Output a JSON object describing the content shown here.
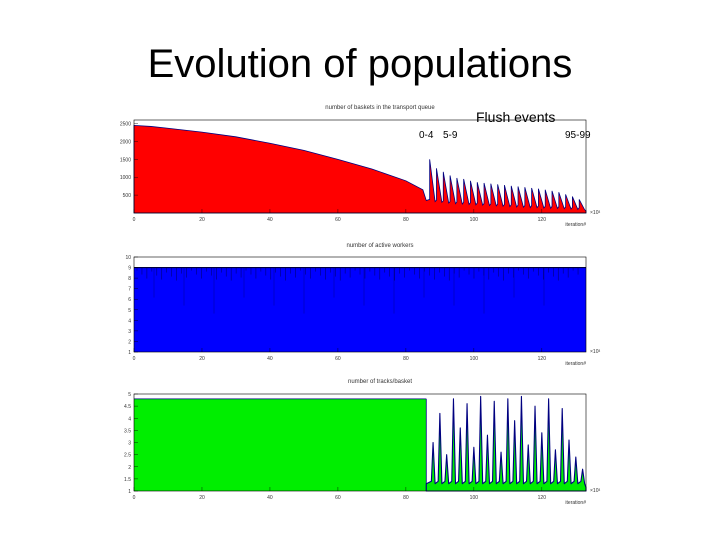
{
  "slide": {
    "title": "Evolution of populations",
    "annotations": {
      "flush_events": "Flush events",
      "group_a": "0-4",
      "group_b": "5-9",
      "group_c": "95-99"
    }
  },
  "colors": {
    "red": "#ff0000",
    "blue": "#0000ff",
    "green": "#00ee00",
    "outline": "#000080"
  },
  "chart_data": [
    {
      "type": "area",
      "title": "number of baskets in the transport queue",
      "xlabel": "iteration#",
      "x_exponent": "×10³",
      "xlim": [
        0,
        133
      ],
      "xticks": [
        "0",
        "20",
        "40",
        "60",
        "80",
        "100",
        "120"
      ],
      "ylim": [
        0,
        2600
      ],
      "yticks": [
        "500",
        "1000",
        "1500",
        "2000",
        "2500"
      ],
      "color": "red",
      "points_before_flush": [
        [
          0,
          2450
        ],
        [
          5,
          2420
        ],
        [
          10,
          2370
        ],
        [
          20,
          2260
        ],
        [
          30,
          2130
        ],
        [
          40,
          1950
        ],
        [
          50,
          1750
        ],
        [
          60,
          1500
        ],
        [
          70,
          1230
        ],
        [
          80,
          900
        ],
        [
          85,
          650
        ],
        [
          86,
          350
        ]
      ],
      "flush_spikes": [
        [
          87,
          1500,
          320
        ],
        [
          89,
          1250,
          300
        ],
        [
          91,
          1150,
          280
        ],
        [
          93,
          1050,
          260
        ],
        [
          95,
          980,
          250
        ],
        [
          97,
          950,
          240
        ],
        [
          99,
          900,
          230
        ],
        [
          101,
          860,
          220
        ],
        [
          103,
          840,
          210
        ],
        [
          105,
          820,
          200
        ],
        [
          107,
          800,
          190
        ],
        [
          109,
          780,
          180
        ],
        [
          111,
          760,
          170
        ],
        [
          113,
          740,
          160
        ],
        [
          115,
          720,
          150
        ],
        [
          117,
          700,
          150
        ],
        [
          119,
          680,
          140
        ],
        [
          121,
          650,
          130
        ],
        [
          123,
          620,
          130
        ],
        [
          125,
          580,
          120
        ],
        [
          127,
          520,
          110
        ],
        [
          129,
          460,
          100
        ],
        [
          131,
          380,
          90
        ]
      ]
    },
    {
      "type": "area",
      "title": "number of active workers",
      "xlabel": "iteration#",
      "x_exponent": "×10³",
      "xlim": [
        0,
        133
      ],
      "xticks": [
        "0",
        "20",
        "40",
        "60",
        "80",
        "100",
        "120"
      ],
      "ylim": [
        1,
        10
      ],
      "yticks": [
        "1",
        "2",
        "3",
        "4",
        "5",
        "6",
        "7",
        "8",
        "9",
        "10"
      ],
      "color": "blue",
      "level": 9
    },
    {
      "type": "area",
      "title": "number of tracks/basket",
      "xlabel": "iteration#",
      "x_exponent": "×10³",
      "xlim": [
        0,
        133
      ],
      "xticks": [
        "0",
        "20",
        "40",
        "60",
        "80",
        "100",
        "120"
      ],
      "ylim": [
        1,
        5
      ],
      "yticks": [
        "1",
        "1.5",
        "2",
        "2.5",
        "3",
        "3.5",
        "4",
        "4.5",
        "5"
      ],
      "color": "green",
      "level_before_flush": 4.8,
      "flush_start": 86,
      "flush_spikes": [
        [
          88,
          3.0
        ],
        [
          90,
          4.2
        ],
        [
          92,
          2.5
        ],
        [
          94,
          4.8
        ],
        [
          96,
          3.6
        ],
        [
          98,
          4.6
        ],
        [
          100,
          2.8
        ],
        [
          102,
          4.9
        ],
        [
          104,
          3.3
        ],
        [
          106,
          4.7
        ],
        [
          108,
          2.6
        ],
        [
          110,
          4.8
        ],
        [
          112,
          3.9
        ],
        [
          114,
          4.9
        ],
        [
          116,
          2.9
        ],
        [
          118,
          4.5
        ],
        [
          120,
          3.4
        ],
        [
          122,
          4.8
        ],
        [
          124,
          2.7
        ],
        [
          126,
          4.4
        ],
        [
          128,
          3.1
        ],
        [
          130,
          2.4
        ],
        [
          132,
          1.9
        ]
      ]
    }
  ]
}
